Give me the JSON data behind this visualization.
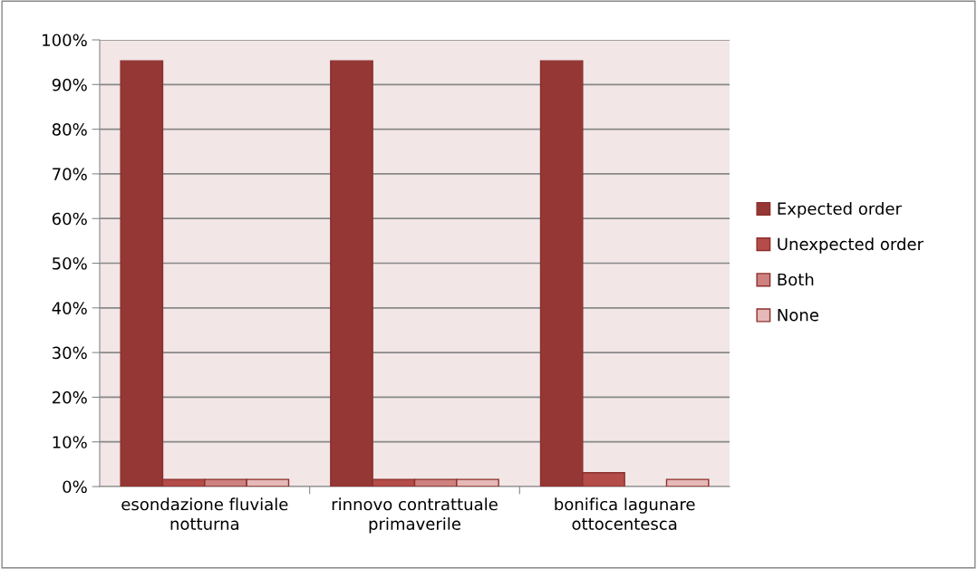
{
  "chart_data": {
    "type": "bar",
    "categories": [
      "esondazione fluviale\nnotturna",
      "rinnovo contrattuale\nprimaverile",
      "bonifica lagunare\nottocentesca"
    ],
    "series": [
      {
        "name": "Expected order",
        "color": "#953735",
        "values": [
          95.3,
          95.3,
          95.3
        ]
      },
      {
        "name": "Unexpected order",
        "color": "#b44d4a",
        "values": [
          1.6,
          1.6,
          3.1
        ]
      },
      {
        "name": "Both",
        "color": "#cd8280",
        "values": [
          1.6,
          1.6,
          null
        ]
      },
      {
        "name": "None",
        "color": "#e6b9b8",
        "values": [
          1.6,
          1.6,
          1.6
        ]
      }
    ],
    "ylim": [
      0,
      100
    ],
    "yticks": [
      {
        "value": 0,
        "label": "0%"
      },
      {
        "value": 10,
        "label": "10%"
      },
      {
        "value": 20,
        "label": "20%"
      },
      {
        "value": 30,
        "label": "30%"
      },
      {
        "value": 40,
        "label": "40%"
      },
      {
        "value": 50,
        "label": "50%"
      },
      {
        "value": 60,
        "label": "60%"
      },
      {
        "value": 70,
        "label": "70%"
      },
      {
        "value": 80,
        "label": "80%"
      },
      {
        "value": 90,
        "label": "90%"
      },
      {
        "value": 100,
        "label": "100%"
      }
    ],
    "grid": "y",
    "legend": "right"
  }
}
